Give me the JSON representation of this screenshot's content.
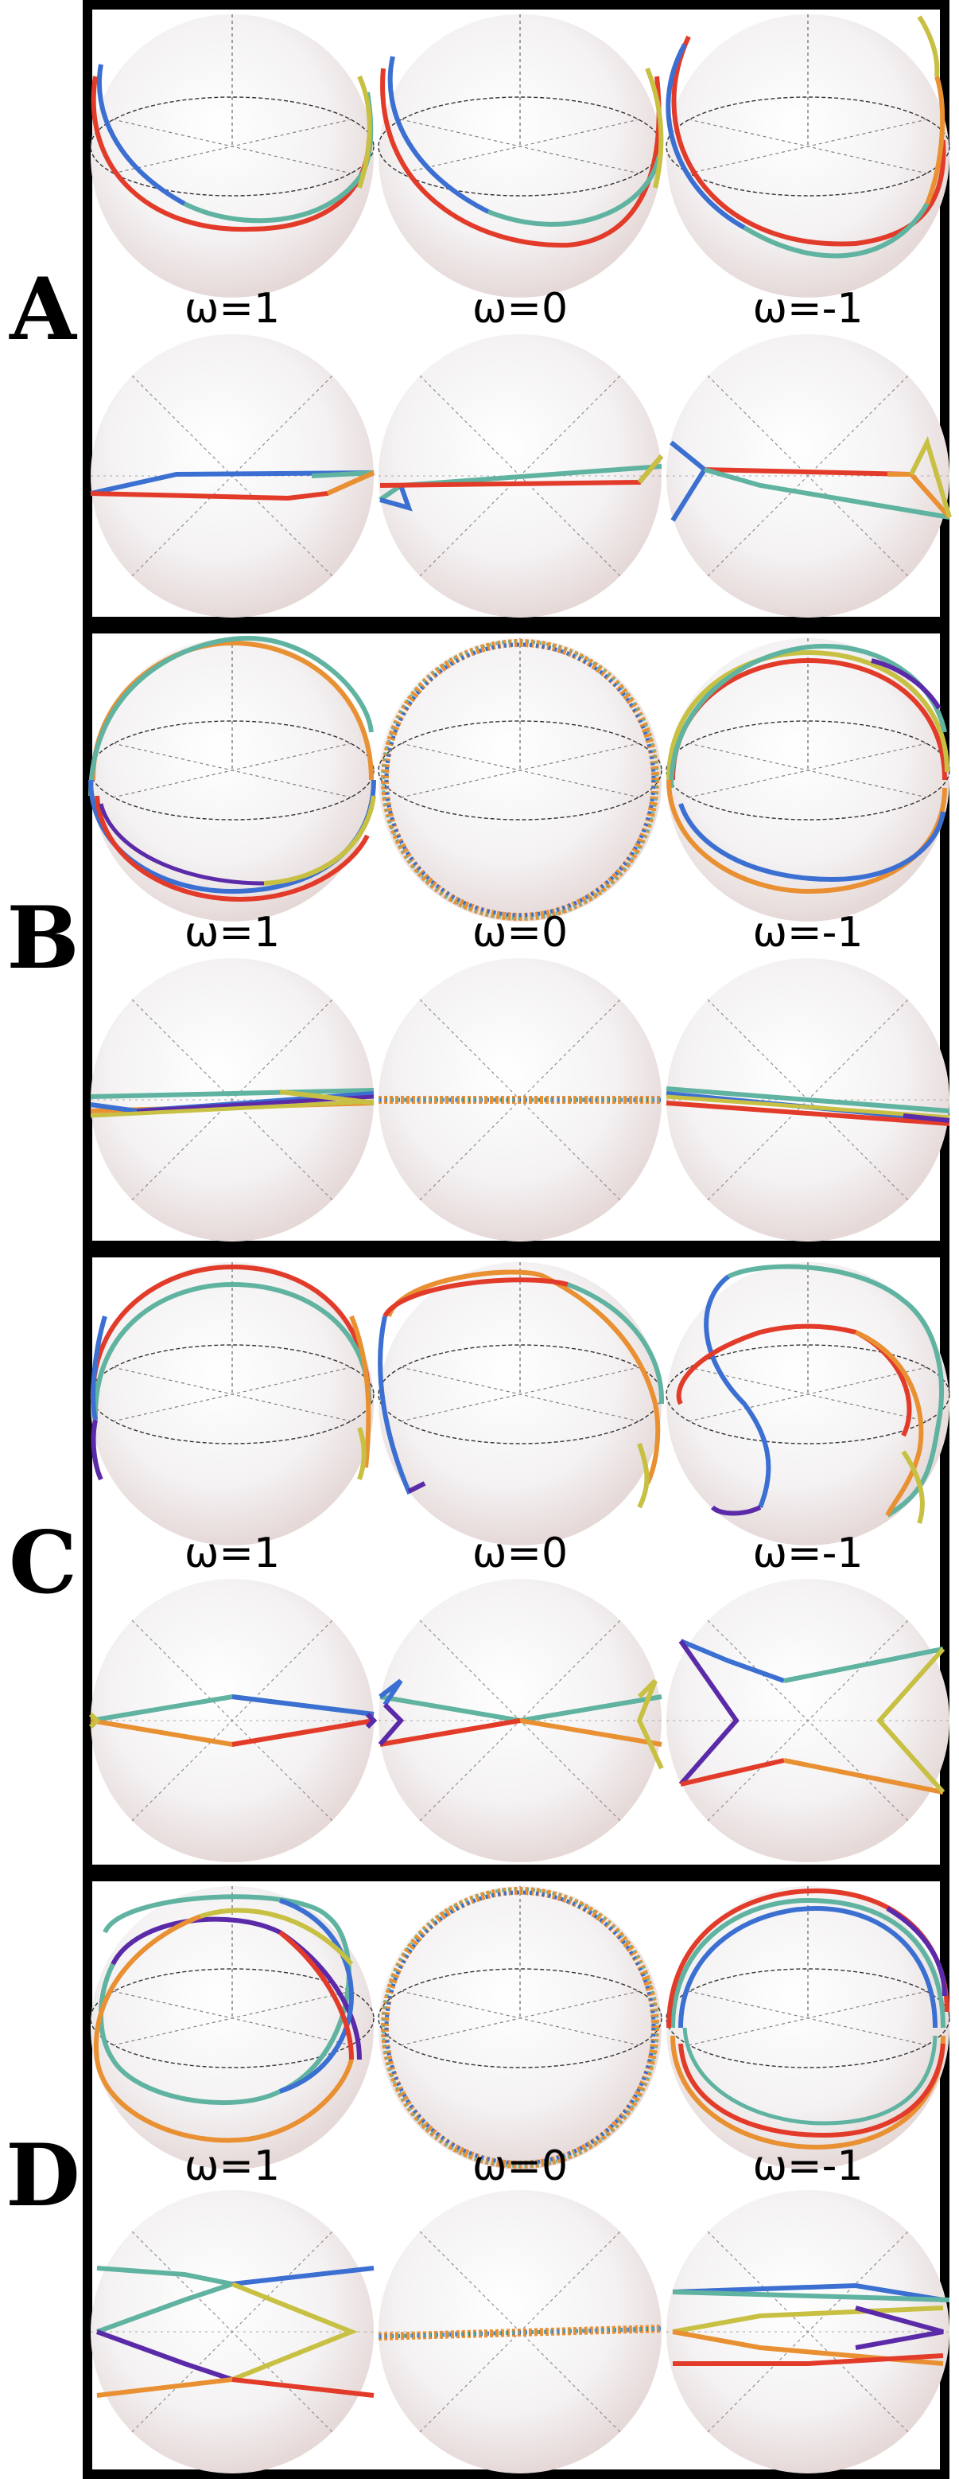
{
  "panels": [
    {
      "letter": "A",
      "omega": [
        "ω=1",
        "ω=0",
        "ω=-1"
      ]
    },
    {
      "letter": "B",
      "omega": [
        "ω=1",
        "ω=0",
        "ω=-1"
      ]
    },
    {
      "letter": "C",
      "omega": [
        "ω=1",
        "ω=0",
        "ω=-1"
      ]
    },
    {
      "letter": "D",
      "omega": [
        "ω=1",
        "ω=0",
        "ω=-1"
      ]
    }
  ],
  "colors": {
    "blue": "#3b6fd1",
    "teal": "#5fb3a0",
    "yellow": "#c8c043",
    "orange": "#e89032",
    "red": "#e23b2a",
    "purple": "#5b2aa8"
  }
}
